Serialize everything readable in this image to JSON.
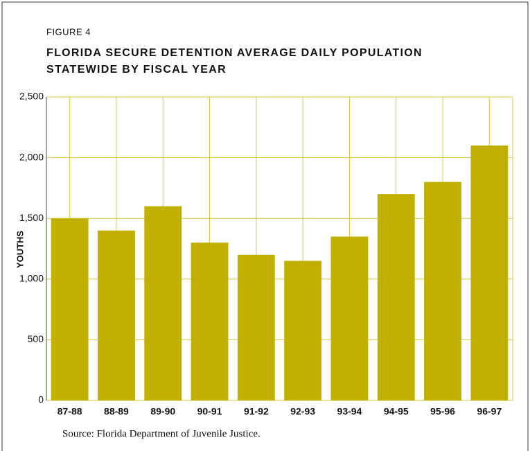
{
  "chart_data": {
    "type": "bar",
    "figure_label": "FIGURE 4",
    "title": [
      "FLORIDA SECURE DETENTION AVERAGE DAILY POPULATION",
      "STATEWIDE BY FISCAL YEAR"
    ],
    "ylabel": "YOUTHS",
    "source": "Source: Florida Department of Juvenile Justice.",
    "categories": [
      "87-88",
      "88-89",
      "89-90",
      "90-91",
      "91-92",
      "92-93",
      "93-94",
      "94-95",
      "95-96",
      "96-97"
    ],
    "values": [
      1500,
      1400,
      1600,
      1300,
      1200,
      1150,
      1350,
      1700,
      1800,
      2100
    ],
    "color": "#c2b000",
    "ylim": [
      0,
      2500
    ],
    "yticks": [
      0,
      500,
      {
        "value": 1000,
        "label": "1,000"
      },
      {
        "value": 1500,
        "label": "1,500"
      },
      {
        "value": 2000,
        "label": "2,000"
      },
      {
        "value": 2500,
        "label": "2,500"
      }
    ],
    "grid": true
  }
}
